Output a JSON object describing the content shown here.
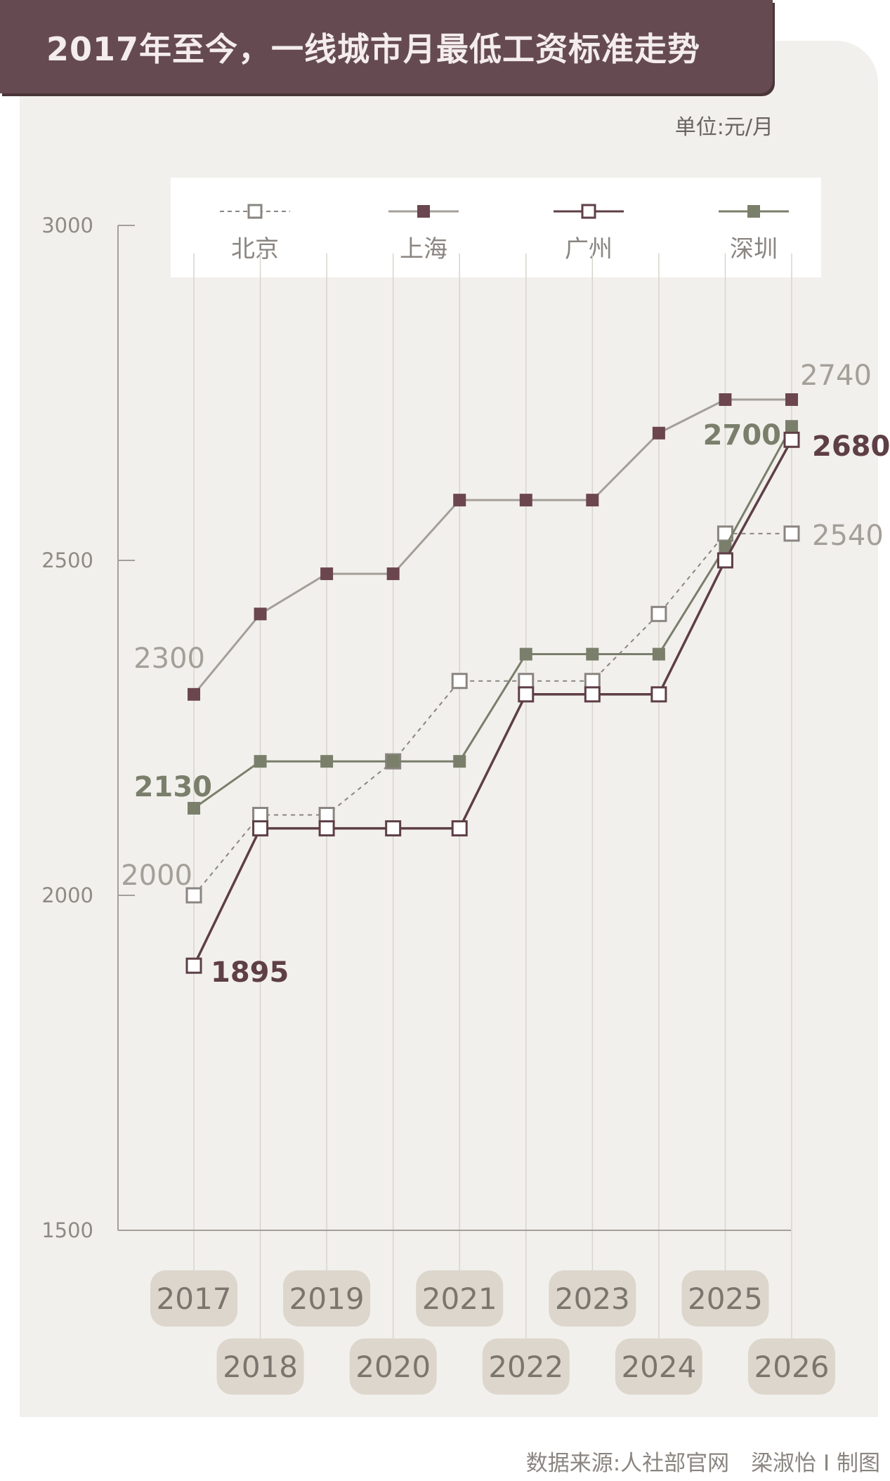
{
  "header": {
    "title": "2017年至今，一线城市月最低工资标准走势"
  },
  "unit_label": "单位:元/月",
  "source_text": "数据来源:人社部官网　梁淑怡 I 制图",
  "colors": {
    "beijing": "#8a8580",
    "shanghai": "#6b464e",
    "guangzhou": "#5e3f46",
    "shenzhen": "#7a7f6b",
    "pill": "#dcd6cc",
    "axis": "#a49f98"
  },
  "legend": [
    {
      "key": "beijing",
      "label": "北京",
      "marker": "hollow",
      "dash": true
    },
    {
      "key": "shanghai",
      "label": "上海",
      "marker": "filled",
      "dash": false
    },
    {
      "key": "guangzhou",
      "label": "广州",
      "marker": "hollow",
      "dash": false
    },
    {
      "key": "shenzhen",
      "label": "深圳",
      "marker": "filled",
      "dash": false
    }
  ],
  "chart_data": {
    "type": "line",
    "x": [
      "2017",
      "2018",
      "2019",
      "2020",
      "2021",
      "2022",
      "2023",
      "2024",
      "2025",
      "2026"
    ],
    "ylim": [
      1500,
      3000
    ],
    "yticks": [
      "1500",
      "2000",
      "2500",
      "3000"
    ],
    "series": [
      {
        "key": "beijing",
        "name": "北京",
        "values": [
          2000,
          2120,
          2120,
          2200,
          2320,
          2320,
          2320,
          2420,
          2540,
          2540
        ]
      },
      {
        "key": "shanghai",
        "name": "上海",
        "values": [
          2300,
          2420,
          2480,
          2480,
          2590,
          2590,
          2590,
          2690,
          2740,
          2740
        ]
      },
      {
        "key": "guangzhou",
        "name": "广州",
        "values": [
          1895,
          2100,
          2100,
          2100,
          2100,
          2300,
          2300,
          2300,
          2500,
          2680
        ]
      },
      {
        "key": "shenzhen",
        "name": "深圳",
        "values": [
          2130,
          2200,
          2200,
          2200,
          2200,
          2360,
          2360,
          2360,
          2520,
          2700
        ]
      }
    ],
    "annotations": [
      {
        "text": "2300",
        "series": "shanghai",
        "index": 0
      },
      {
        "text": "2130",
        "series": "shenzhen",
        "index": 0
      },
      {
        "text": "2000",
        "series": "beijing",
        "index": 0
      },
      {
        "text": "1895",
        "series": "guangzhou",
        "index": 0
      },
      {
        "text": "2740",
        "series": "shanghai",
        "index": 9
      },
      {
        "text": "2700",
        "series": "shenzhen",
        "index": 9
      },
      {
        "text": "2680",
        "series": "guangzhou",
        "index": 9
      },
      {
        "text": "2540",
        "series": "beijing",
        "index": 9
      }
    ]
  }
}
